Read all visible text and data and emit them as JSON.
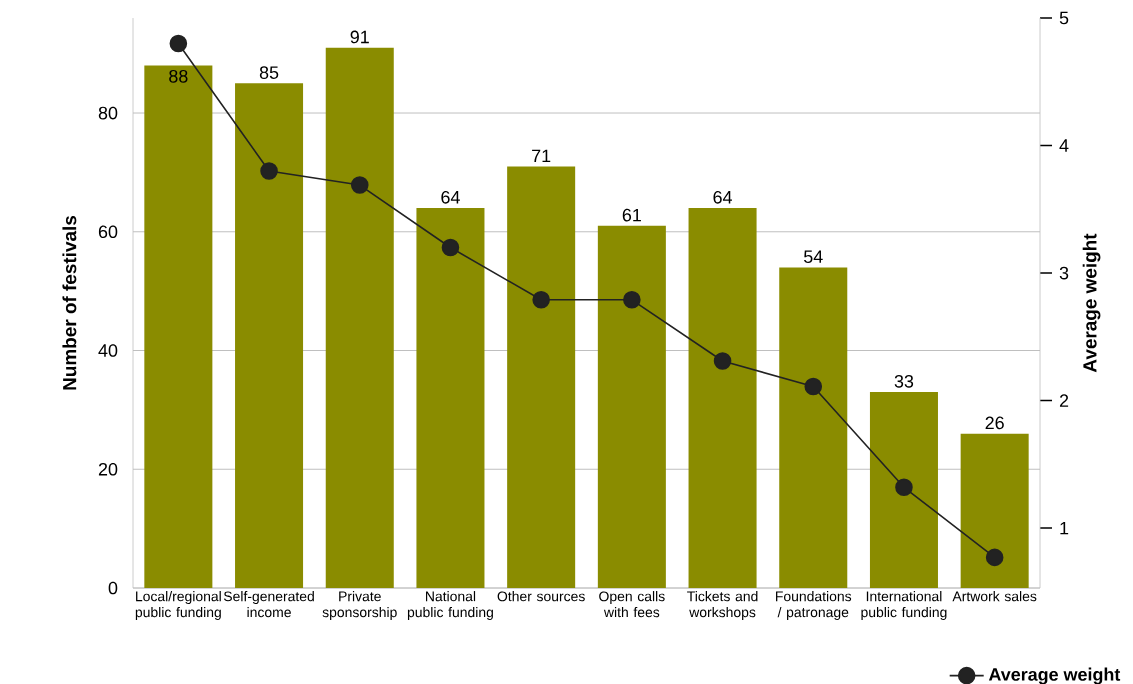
{
  "chart_data": {
    "type": "bar",
    "ylabel": "Number of festivals",
    "y2label": "Average weight",
    "categories": [
      "Local/regional public funding",
      "Self-generated income",
      "Private sponsorship",
      "National public funding",
      "Other sources",
      "Open calls with fees",
      "Tickets and workshops",
      "Foundations / patronage",
      "International public funding",
      "Artwork sales"
    ],
    "series": [
      {
        "color": "#8a8c00",
        "values": [
          88,
          85,
          91,
          64,
          71,
          61,
          64,
          54,
          33,
          26
        ],
        "value_labels": [
          "88",
          "85",
          "91",
          "64",
          "71",
          "61",
          "64",
          "54",
          "33",
          "26"
        ]
      },
      {
        "type": "line",
        "name": "Average weight",
        "axis": "y2",
        "color": "#222222",
        "values": [
          4.8,
          3.8,
          3.69,
          3.2,
          2.79,
          2.79,
          2.31,
          2.11,
          1.32,
          0.77
        ]
      }
    ],
    "ylim": [
      0,
      96
    ],
    "yticks": [
      0,
      20,
      40,
      60,
      80
    ],
    "y2lim": [
      0.53,
      5
    ],
    "y2ticks": [
      1,
      2,
      3,
      4,
      5
    ],
    "grid": "y",
    "legend": "bottom right",
    "marker": "circle",
    "line_style": "solid"
  }
}
